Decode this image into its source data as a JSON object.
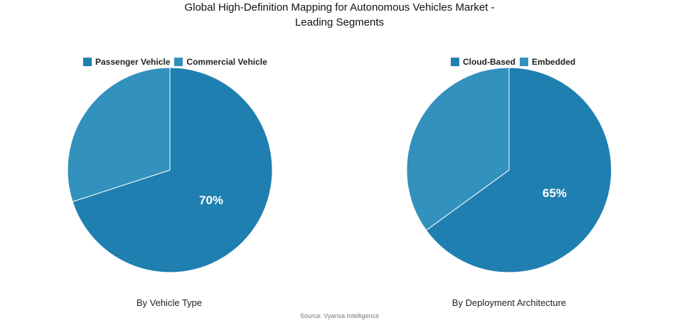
{
  "title_line1": "Global High-Definition Mapping for Autonomous Vehicles Market -",
  "title_line2": "Leading Segments",
  "source": "Source: Vyansa Intelligence",
  "colors": {
    "dominant": "#1f7fb0",
    "secondary": "#3291bd",
    "edge": "#ffffff"
  },
  "chart_data": [
    {
      "type": "pie",
      "xlabel": "By Vehicle Type",
      "labels": [
        "Passenger Vehicle",
        "Commercial Vehicle"
      ],
      "values": [
        70,
        30
      ],
      "data_labels": [
        "70%",
        ""
      ],
      "colors": [
        "#1f7fb0",
        "#3291bd"
      ],
      "legend_position": "top"
    },
    {
      "type": "pie",
      "xlabel": "By Deployment Architecture",
      "labels": [
        "Cloud-Based",
        "Embedded"
      ],
      "values": [
        65,
        35
      ],
      "data_labels": [
        "65%",
        ""
      ],
      "colors": [
        "#1f7fb0",
        "#3291bd"
      ],
      "legend_position": "top"
    }
  ]
}
